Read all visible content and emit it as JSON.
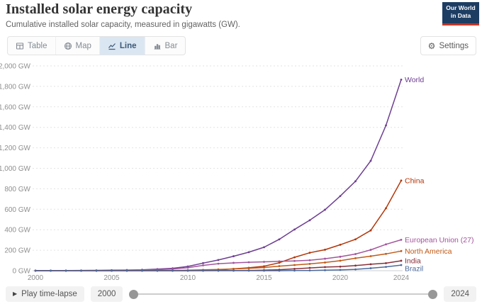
{
  "header": {
    "title": "Installed solar energy capacity",
    "subtitle": "Cumulative installed solar capacity, measured in gigawatts (GW).",
    "logo": {
      "line1": "Our World",
      "line2": "in Data",
      "bg": "#1d3d63",
      "accent": "#c0392b"
    }
  },
  "toolbar": {
    "tabs": [
      {
        "label": "Table",
        "icon": "table-icon",
        "active": false
      },
      {
        "label": "Map",
        "icon": "globe-icon",
        "active": false
      },
      {
        "label": "Line",
        "icon": "line-chart-icon",
        "active": true
      },
      {
        "label": "Bar",
        "icon": "bar-chart-icon",
        "active": false
      }
    ],
    "settings_label": "Settings",
    "settings_icon": "gear-icon",
    "active_tab_bg": "#dbe6f3",
    "active_tab_text": "#3d5a77"
  },
  "chart_data": {
    "type": "line",
    "title": "Installed solar energy capacity",
    "unit": "GW",
    "grid": "dashed-horizontal",
    "legend_position": "end-of-line-labels",
    "xlim": [
      2000,
      2024
    ],
    "ylim": [
      0,
      2000
    ],
    "x_ticks": [
      2000,
      2005,
      2010,
      2015,
      2020,
      2024
    ],
    "y_tick_values": [
      0,
      200,
      400,
      600,
      800,
      1000,
      1200,
      1400,
      1600,
      1800,
      2000
    ],
    "y_ticks": [
      "0 GW",
      "200 GW",
      "400 GW",
      "600 GW",
      "800 GW",
      "1,000 GW",
      "1,200 GW",
      "1,400 GW",
      "1,600 GW",
      "1,800 GW",
      "2,000 GW"
    ],
    "x": [
      2000,
      2001,
      2002,
      2003,
      2004,
      2005,
      2006,
      2007,
      2008,
      2009,
      2010,
      2011,
      2012,
      2013,
      2014,
      2015,
      2016,
      2017,
      2018,
      2019,
      2020,
      2021,
      2022,
      2023,
      2024
    ],
    "series": [
      {
        "name": "World",
        "color": "#6d3e91",
        "values": [
          1.2,
          1.5,
          1.9,
          2.5,
          3.4,
          4.9,
          6.5,
          9.0,
          15.5,
          23.6,
          41.5,
          73.9,
          104.3,
          141.4,
          180.8,
          228.9,
          306.3,
          402.5,
          492.6,
          595.5,
          728.4,
          873.1,
          1073.0,
          1418.9,
          1865.7
        ]
      },
      {
        "name": "China",
        "color": "#b13507",
        "values": [
          0.02,
          0.03,
          0.05,
          0.06,
          0.06,
          0.07,
          0.08,
          0.1,
          0.14,
          0.3,
          1.0,
          3.1,
          6.7,
          17.8,
          28.4,
          43.5,
          77.8,
          130.8,
          175.3,
          204.7,
          253.6,
          306.4,
          393.0,
          609.5,
          880.2
        ]
      },
      {
        "name": "European Union (27)",
        "color": "#a2559c",
        "values": [
          0.18,
          0.27,
          0.42,
          0.63,
          1.18,
          2.17,
          3.33,
          5.26,
          10.55,
          16.9,
          29.7,
          51.9,
          68.5,
          76.4,
          82.3,
          86.7,
          91.1,
          95.4,
          102.2,
          117.1,
          136.2,
          162.3,
          203.7,
          257.2,
          301.8
        ]
      },
      {
        "name": "North America",
        "color": "#c05917",
        "values": [
          0.2,
          0.25,
          0.3,
          0.4,
          0.55,
          0.7,
          0.9,
          1.2,
          1.8,
          2.7,
          4.6,
          8.6,
          12.4,
          17.4,
          23.5,
          30.9,
          44.6,
          55.3,
          66.3,
          80.0,
          97.5,
          121.7,
          141.8,
          164.0,
          191.5
        ]
      },
      {
        "name": "India",
        "color": "#883039",
        "values": [
          0.01,
          0.01,
          0.02,
          0.02,
          0.03,
          0.03,
          0.03,
          0.04,
          0.06,
          0.1,
          0.16,
          0.6,
          1.2,
          1.7,
          2.8,
          5.6,
          9.9,
          17.9,
          27.3,
          35.1,
          39.5,
          49.7,
          63.1,
          73.1,
          97.2
        ]
      },
      {
        "name": "Brazil",
        "color": "#4c6a9c",
        "values": [
          0.0,
          0.0,
          0.0,
          0.0,
          0.0,
          0.0,
          0.0,
          0.0,
          0.0,
          0.0,
          0.01,
          0.01,
          0.01,
          0.03,
          0.04,
          0.06,
          0.15,
          1.1,
          2.4,
          4.6,
          7.9,
          13.1,
          24.1,
          37.4,
          55.0
        ]
      }
    ],
    "axis_label_color": "#8f8f8f",
    "gridline_color": "#e3e3e3"
  },
  "timeline": {
    "play_label": "Play time-lapse",
    "play_icon": "play-icon",
    "start_year": "2000",
    "end_year": "2024"
  }
}
